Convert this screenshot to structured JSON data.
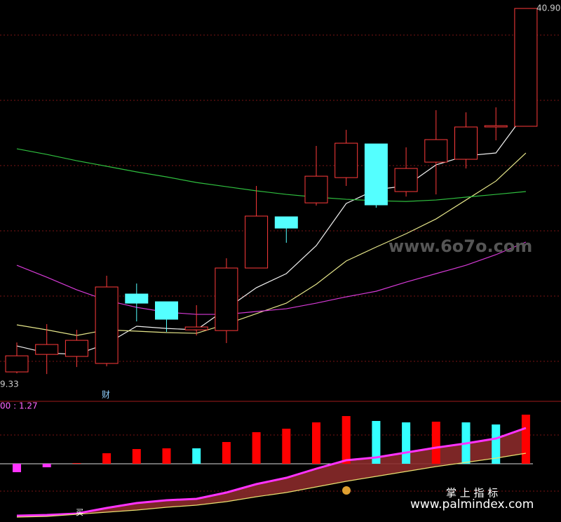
{
  "chart_data": [
    {
      "type": "candlestick",
      "categories": [
        null,
        null,
        null,
        null,
        null,
        null,
        null,
        null,
        null,
        null,
        null,
        null,
        null,
        null,
        null,
        null,
        null,
        null
      ],
      "open": [
        10.39,
        11.86,
        11.69,
        11.1,
        16.93,
        16.28,
        13.92,
        13.86,
        19.11,
        23.41,
        24.58,
        26.7,
        29.53,
        25.53,
        28.0,
        28.24,
        30.95,
        31.01
      ],
      "close": [
        11.74,
        12.69,
        13.04,
        17.52,
        16.16,
        14.81,
        14.16,
        19.11,
        23.47,
        22.46,
        26.82,
        29.59,
        24.41,
        27.47,
        29.89,
        30.95,
        31.06,
        40.9
      ],
      "high": [
        12.86,
        14.4,
        13.92,
        18.46,
        17.81,
        16.28,
        15.99,
        19.93,
        26.0,
        23.41,
        29.36,
        30.71,
        29.53,
        29.24,
        32.36,
        32.18,
        32.6,
        40.9
      ],
      "low": [
        10.27,
        10.21,
        10.8,
        10.86,
        14.63,
        13.75,
        13.45,
        12.81,
        19.11,
        21.23,
        24.35,
        26.0,
        24.17,
        25.11,
        25.29,
        27.47,
        29.83,
        31.01
      ],
      "up_color": "#ff3b3b",
      "down_color": "#54ffff",
      "series": [
        {
          "color": "#f0f0f0",
          "values": [
            12.57,
            11.98,
            11.86,
            12.75,
            14.22,
            14.04,
            13.92,
            15.69,
            17.46,
            18.64,
            20.99,
            24.53,
            25.7,
            26.0,
            27.77,
            28.53,
            28.77,
            32.18
          ]
        },
        {
          "color": "#e6e68a",
          "values": [
            14.34,
            13.92,
            13.45,
            13.92,
            13.81,
            13.69,
            13.63,
            14.4,
            15.28,
            16.16,
            17.75,
            19.7,
            20.87,
            21.99,
            23.23,
            24.82,
            26.41,
            28.77
          ]
        },
        {
          "color": "#d63ad6",
          "values": [
            19.34,
            18.34,
            17.28,
            16.4,
            15.81,
            15.4,
            15.22,
            15.22,
            15.46,
            15.69,
            16.16,
            16.69,
            17.16,
            17.93,
            18.64,
            19.34,
            20.23,
            21.29
          ]
        },
        {
          "color": "#2fbf3f",
          "values": [
            29.12,
            28.65,
            28.12,
            27.65,
            27.18,
            26.76,
            26.29,
            25.94,
            25.59,
            25.29,
            25.06,
            24.88,
            24.76,
            24.7,
            24.82,
            25.06,
            25.29,
            25.53
          ]
        }
      ],
      "annotations": [
        {
          "value": 40.9,
          "label": "40.90"
        },
        {
          "value": 9.33,
          "label": "9.33"
        }
      ],
      "ylim": [
        7.92,
        41.61
      ]
    },
    {
      "type": "bar",
      "label": "00 : 1.27",
      "categories": [
        null,
        null,
        null,
        null,
        null,
        null,
        null,
        null,
        null,
        null,
        null,
        null,
        null,
        null,
        null,
        null,
        null,
        null
      ],
      "values": [
        -12,
        -5,
        1,
        15,
        21,
        22,
        22,
        31,
        45,
        50,
        59,
        68,
        61,
        59,
        60,
        59,
        56,
        70
      ],
      "colors": [
        "#ff33ff",
        "#ff33ff",
        "#ff2020",
        "#ff0000",
        "#ff0000",
        "#ff0000",
        "#33ffff",
        "#ff0000",
        "#ff0000",
        "#ff0000",
        "#ff0000",
        "#ff0000",
        "#33ffff",
        "#33ffff",
        "#ff0000",
        "#33ffff",
        "#33ffff",
        "#ff0000"
      ],
      "series": [
        {
          "color": "#ff33ff",
          "values": [
            -74,
            -73,
            -71,
            -63,
            -56,
            -52,
            -50,
            -41,
            -29,
            -20,
            -7,
            5,
            9,
            16,
            23,
            29,
            36,
            51
          ]
        },
        {
          "color": "#e8e070",
          "values": [
            -76,
            -75,
            -72,
            -69,
            -66,
            -62,
            -59,
            -54,
            -47,
            -41,
            -33,
            -25,
            -18,
            -11,
            -4,
            2,
            8,
            15
          ]
        }
      ],
      "fill_color": "#8a2a2a",
      "ylim": [
        -83,
        89
      ]
    }
  ],
  "signals": [
    "财",
    "买"
  ],
  "watermarks": [
    "www.6o7o.com",
    "掌 上 指 标",
    "www.palmindex.com"
  ]
}
